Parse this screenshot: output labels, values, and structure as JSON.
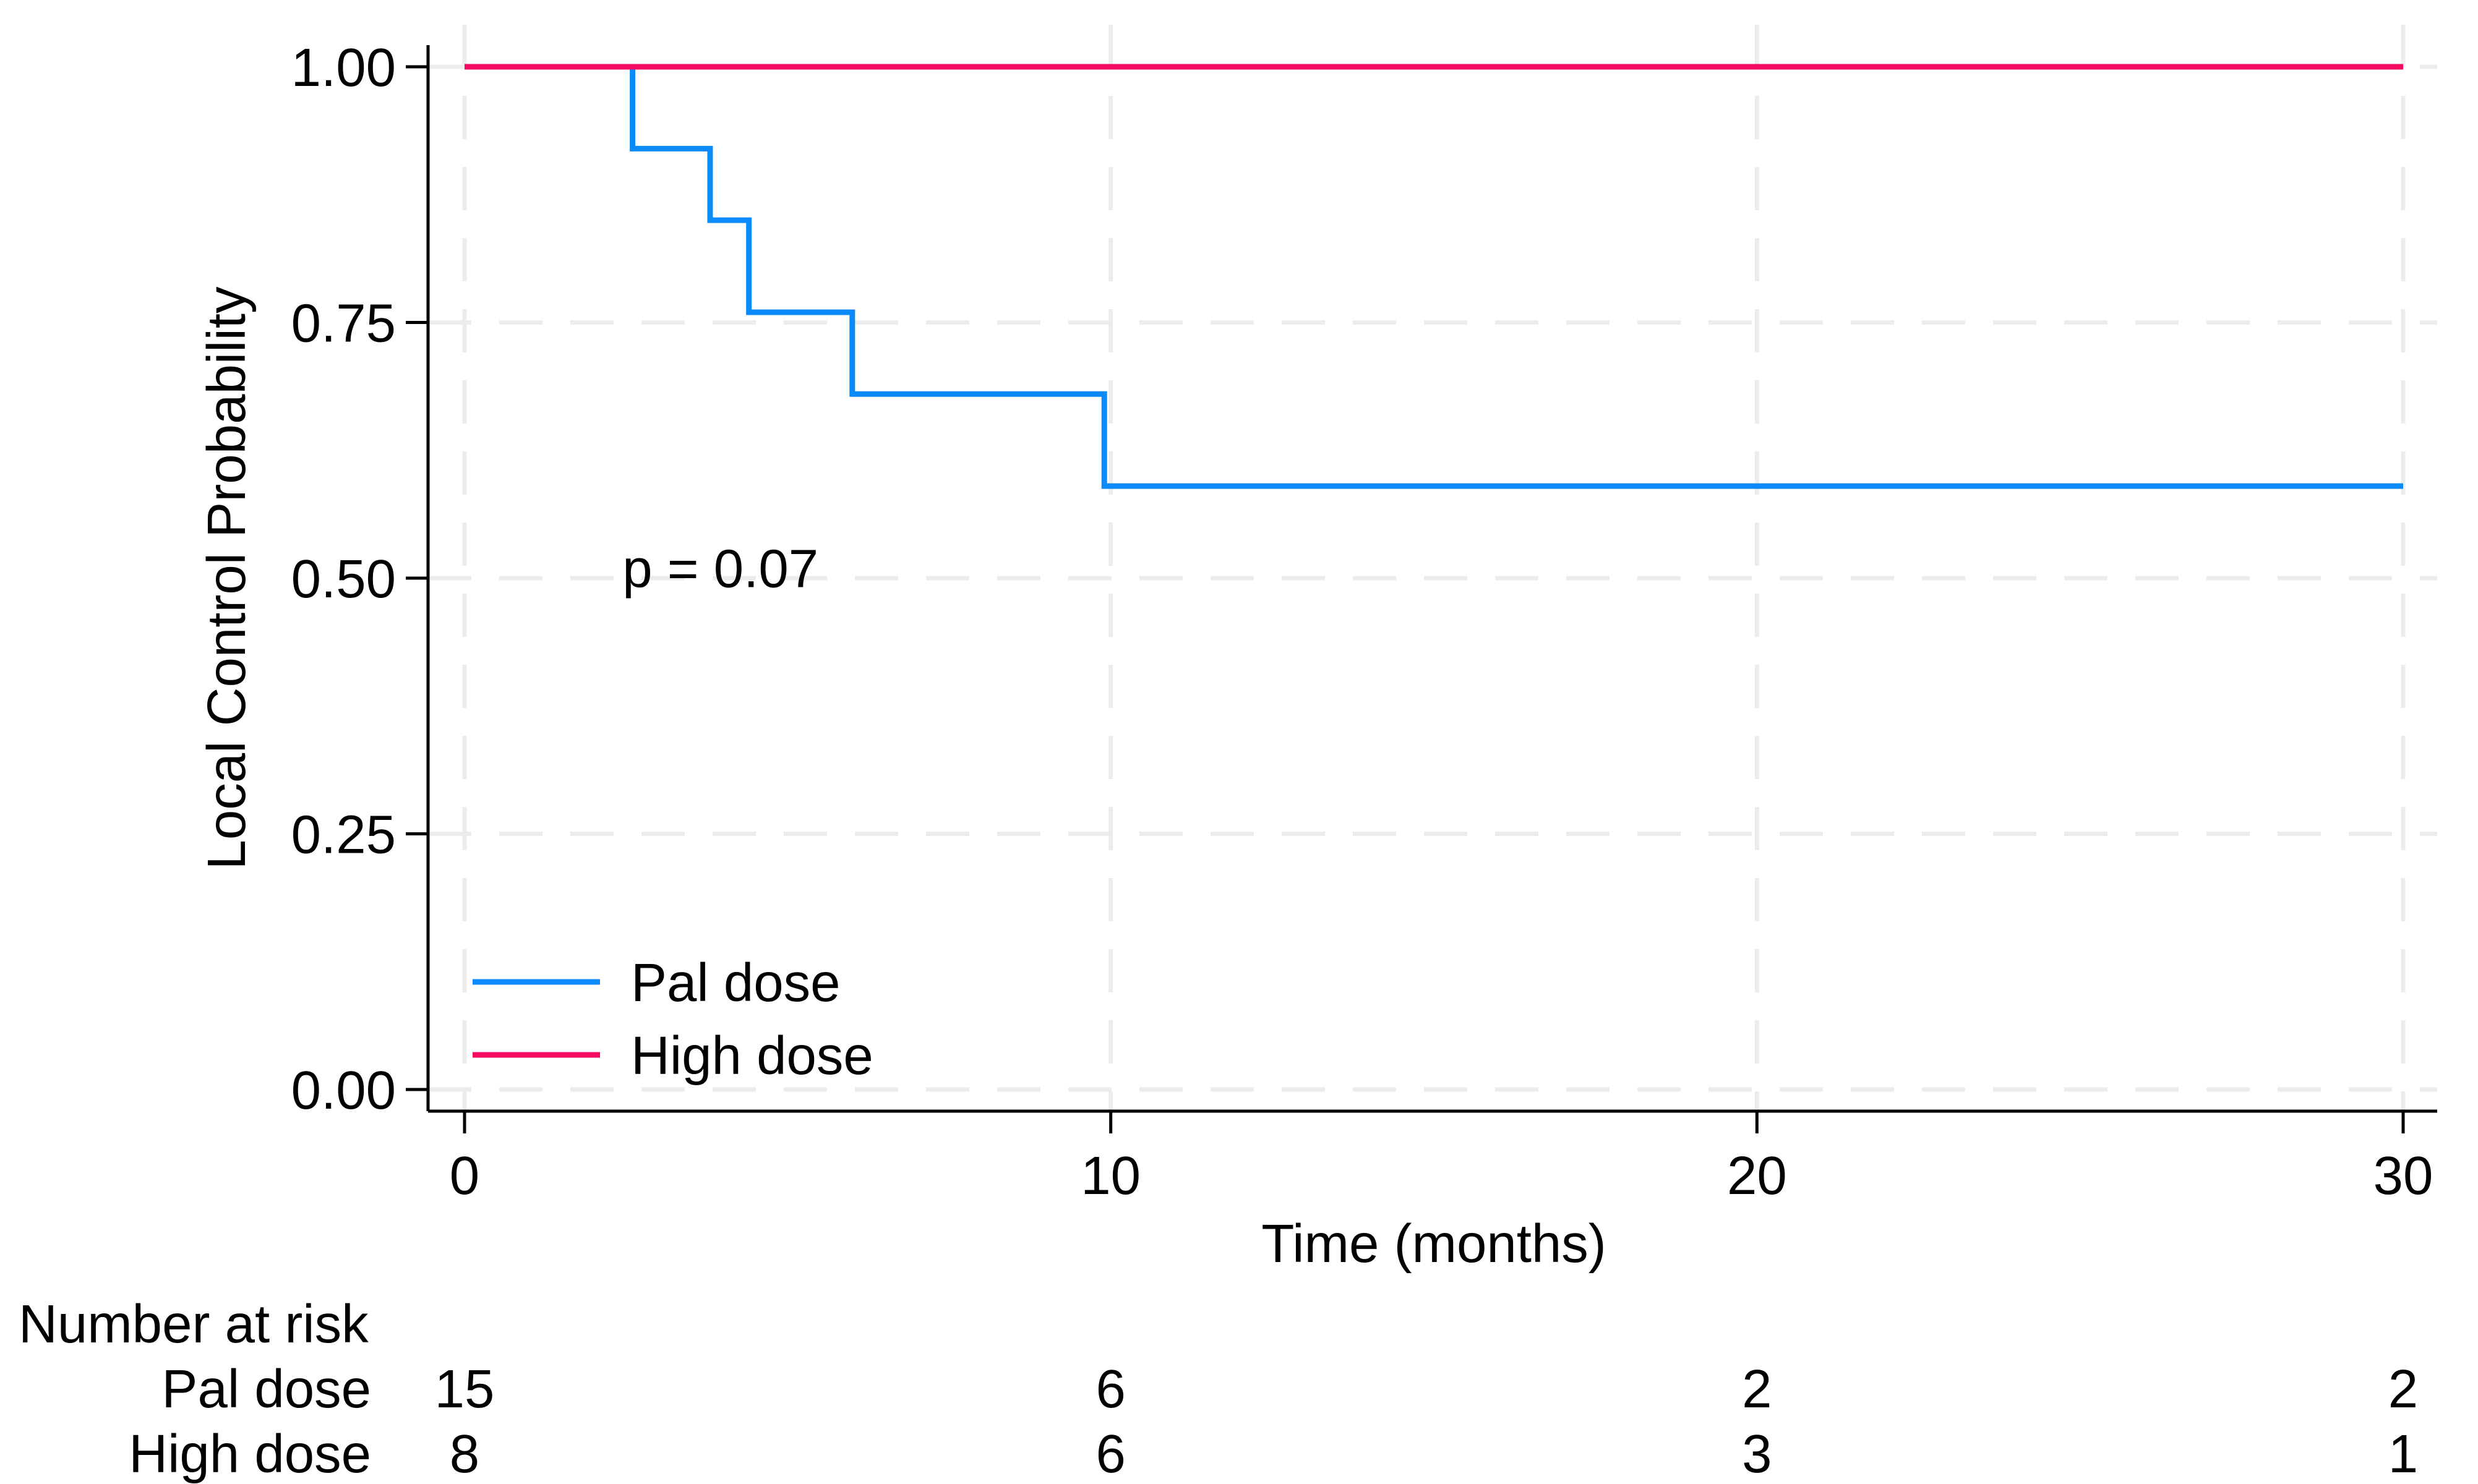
{
  "chart_data": {
    "type": "line",
    "subtype": "kaplan-meier-step",
    "title": "",
    "xlabel": "Time (months)",
    "ylabel": "Local Control Probability",
    "xlim": [
      0,
      30
    ],
    "ylim": [
      0,
      1
    ],
    "x_ticks": [
      0,
      10,
      20,
      30
    ],
    "x_tick_labels": [
      "0",
      "10",
      "20",
      "30"
    ],
    "y_ticks": [
      1.0,
      0.75,
      0.5,
      0.25,
      0.0
    ],
    "y_tick_labels": [
      "1.00",
      "0.75",
      "0.50",
      "0.25",
      "0.00"
    ],
    "grid": "dashed gridlines at all x and y ticks",
    "legend_position": "inside bottom-left",
    "annotation": {
      "text": "p = 0.07",
      "x": 3.96,
      "y": 0.51
    },
    "legend": {
      "entries": [
        {
          "label": "Pal dose",
          "color": "#0b8af9"
        },
        {
          "label": "High dose",
          "color": "#f5085f"
        }
      ]
    },
    "series": [
      {
        "name": "Pal dose",
        "color": "#0b8af9",
        "points": [
          [
            0,
            1.0
          ],
          [
            2.6,
            0.92
          ],
          [
            3.8,
            0.85
          ],
          [
            4.4,
            0.76
          ],
          [
            6.0,
            0.68
          ],
          [
            9.9,
            0.59
          ],
          [
            30,
            0.59
          ]
        ]
      },
      {
        "name": "High dose",
        "color": "#f5085f",
        "points": [
          [
            0,
            1.0
          ],
          [
            30,
            1.0
          ]
        ]
      }
    ]
  },
  "risk_table": {
    "title": "Number at risk",
    "time_points": [
      0,
      10,
      20,
      30
    ],
    "rows": [
      {
        "label": "Pal dose",
        "counts": [
          "15",
          "6",
          "2",
          "2"
        ]
      },
      {
        "label": "High dose",
        "counts": [
          "8",
          "6",
          "3",
          "1"
        ]
      }
    ]
  },
  "colors": {
    "pal_dose": "#0b8af9",
    "high_dose": "#f5085f",
    "gridline": "#ececec",
    "axis": "#000000",
    "background": "#ffffff"
  }
}
